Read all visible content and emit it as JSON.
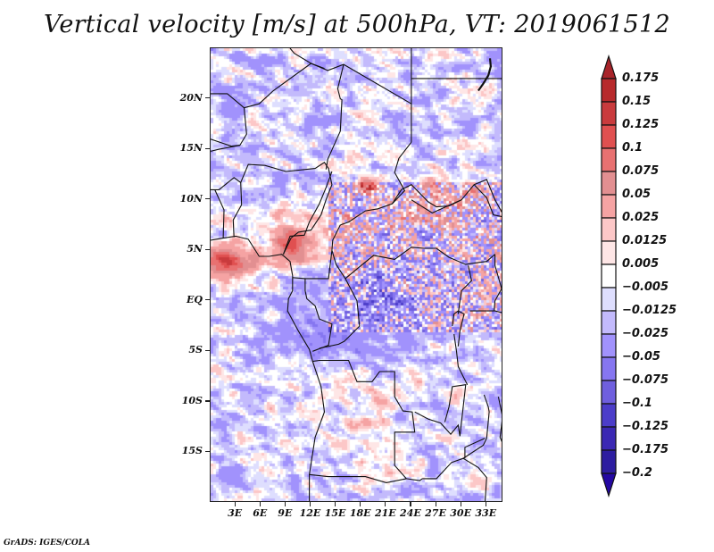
{
  "title": "Vertical velocity [m/s] at 500hPa, VT: 2019061512",
  "credit": "GrADS: IGES/COLA",
  "map": {
    "variable": "Vertical velocity",
    "units": "m/s",
    "level": "500hPa",
    "valid_time": "2019061512",
    "lon_range": [
      0,
      35
    ],
    "lat_range": [
      -20,
      25
    ],
    "y_ticks": [
      {
        "lat": 20,
        "label": "20N"
      },
      {
        "lat": 15,
        "label": "15N"
      },
      {
        "lat": 10,
        "label": "10N"
      },
      {
        "lat": 5,
        "label": "5N"
      },
      {
        "lat": 0,
        "label": "EQ"
      },
      {
        "lat": -5,
        "label": "5S"
      },
      {
        "lat": -10,
        "label": "10S"
      },
      {
        "lat": -15,
        "label": "15S"
      }
    ],
    "x_ticks": [
      {
        "lon": 3,
        "label": "3E"
      },
      {
        "lon": 6,
        "label": "6E"
      },
      {
        "lon": 9,
        "label": "9E"
      },
      {
        "lon": 12,
        "label": "12E"
      },
      {
        "lon": 15,
        "label": "15E"
      },
      {
        "lon": 18,
        "label": "18E"
      },
      {
        "lon": 21,
        "label": "21E"
      },
      {
        "lon": 24,
        "label": "24E"
      },
      {
        "lon": 27,
        "label": "27E"
      },
      {
        "lon": 30,
        "label": "30E"
      },
      {
        "lon": 33,
        "label": "33E"
      }
    ],
    "features": [
      {
        "name": "strong-ascent-gulf-of-guinea",
        "lon": 1.5,
        "lat": 4.0,
        "value": 0.125
      },
      {
        "name": "ascent-band-chad",
        "lon": 18.5,
        "lat": 11.5,
        "value": 0.15
      },
      {
        "name": "ascent-band-sudan",
        "lon": 28,
        "lat": 10,
        "value": 0.1
      },
      {
        "name": "descent-congo-basin",
        "lon": 20,
        "lat": 0,
        "value": -0.075
      }
    ]
  },
  "colorbar": {
    "levels": [
      "0.175",
      "0.15",
      "0.125",
      "0.1",
      "0.075",
      "0.05",
      "0.025",
      "0.0125",
      "0.005",
      "-0.005",
      "-0.0125",
      "-0.025",
      "-0.05",
      "-0.075",
      "-0.1",
      "-0.125",
      "-0.175",
      "-0.2"
    ],
    "colors": [
      "#a8242a",
      "#b72a2c",
      "#c93b3d",
      "#e05050",
      "#e87171",
      "#e28f91",
      "#f5a3a3",
      "#fcc7c7",
      "#fee6e6",
      "#ffffff",
      "#dedefe",
      "#c3bafc",
      "#a192fc",
      "#8676f0",
      "#6f5fde",
      "#4c3dc9",
      "#3b28b3",
      "#2d1da0",
      "#2408a2"
    ]
  },
  "chart_data": {
    "type": "heatmap",
    "title": "Vertical velocity [m/s] at 500hPa, VT: 2019061512",
    "xlabel": "",
    "ylabel": "",
    "x_tick_labels": [
      "3E",
      "6E",
      "9E",
      "12E",
      "15E",
      "18E",
      "21E",
      "24E",
      "27E",
      "30E",
      "33E"
    ],
    "y_tick_labels": [
      "20N",
      "15N",
      "10N",
      "5N",
      "EQ",
      "5S",
      "10S",
      "15S"
    ],
    "xlim": [
      0,
      35
    ],
    "ylim": [
      -20,
      25
    ],
    "legend": "right",
    "colorbar_levels": [
      0.175,
      0.15,
      0.125,
      0.1,
      0.075,
      0.05,
      0.025,
      0.0125,
      0.005,
      -0.005,
      -0.0125,
      -0.025,
      -0.05,
      -0.075,
      -0.1,
      -0.125,
      -0.175,
      -0.2
    ]
  }
}
